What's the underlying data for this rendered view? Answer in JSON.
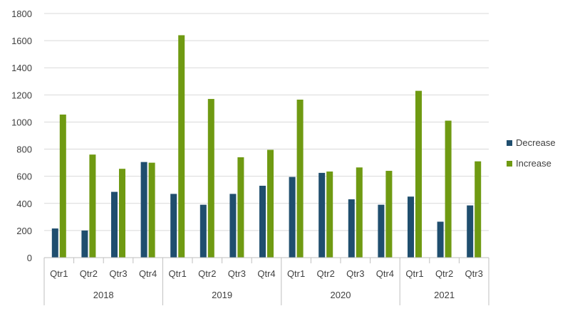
{
  "chart_data": {
    "type": "bar",
    "groups": [
      {
        "label": "2018",
        "categories": [
          "Qtr1",
          "Qtr2",
          "Qtr3",
          "Qtr4"
        ]
      },
      {
        "label": "2019",
        "categories": [
          "Qtr1",
          "Qtr2",
          "Qtr3",
          "Qtr4"
        ]
      },
      {
        "label": "2020",
        "categories": [
          "Qtr1",
          "Qtr2",
          "Qtr3",
          "Qtr4"
        ]
      },
      {
        "label": "2021",
        "categories": [
          "Qtr1",
          "Qtr2",
          "Qtr3"
        ]
      }
    ],
    "series": [
      {
        "name": "Decrease",
        "color": "#1f4e6e",
        "values": [
          215,
          200,
          485,
          705,
          470,
          390,
          470,
          530,
          595,
          625,
          430,
          390,
          450,
          265,
          385
        ]
      },
      {
        "name": "Increase",
        "color": "#6f9a12",
        "values": [
          1055,
          760,
          655,
          700,
          1640,
          1170,
          740,
          795,
          1165,
          635,
          665,
          640,
          1230,
          1010,
          710
        ]
      }
    ],
    "ylim": [
      0,
      1800
    ],
    "yticks": [
      "0",
      "200",
      "400",
      "600",
      "800",
      "1000",
      "1200",
      "1400",
      "1600",
      "1800"
    ],
    "grid": true,
    "legend_position": "right",
    "title": "",
    "xlabel": "",
    "ylabel": ""
  }
}
